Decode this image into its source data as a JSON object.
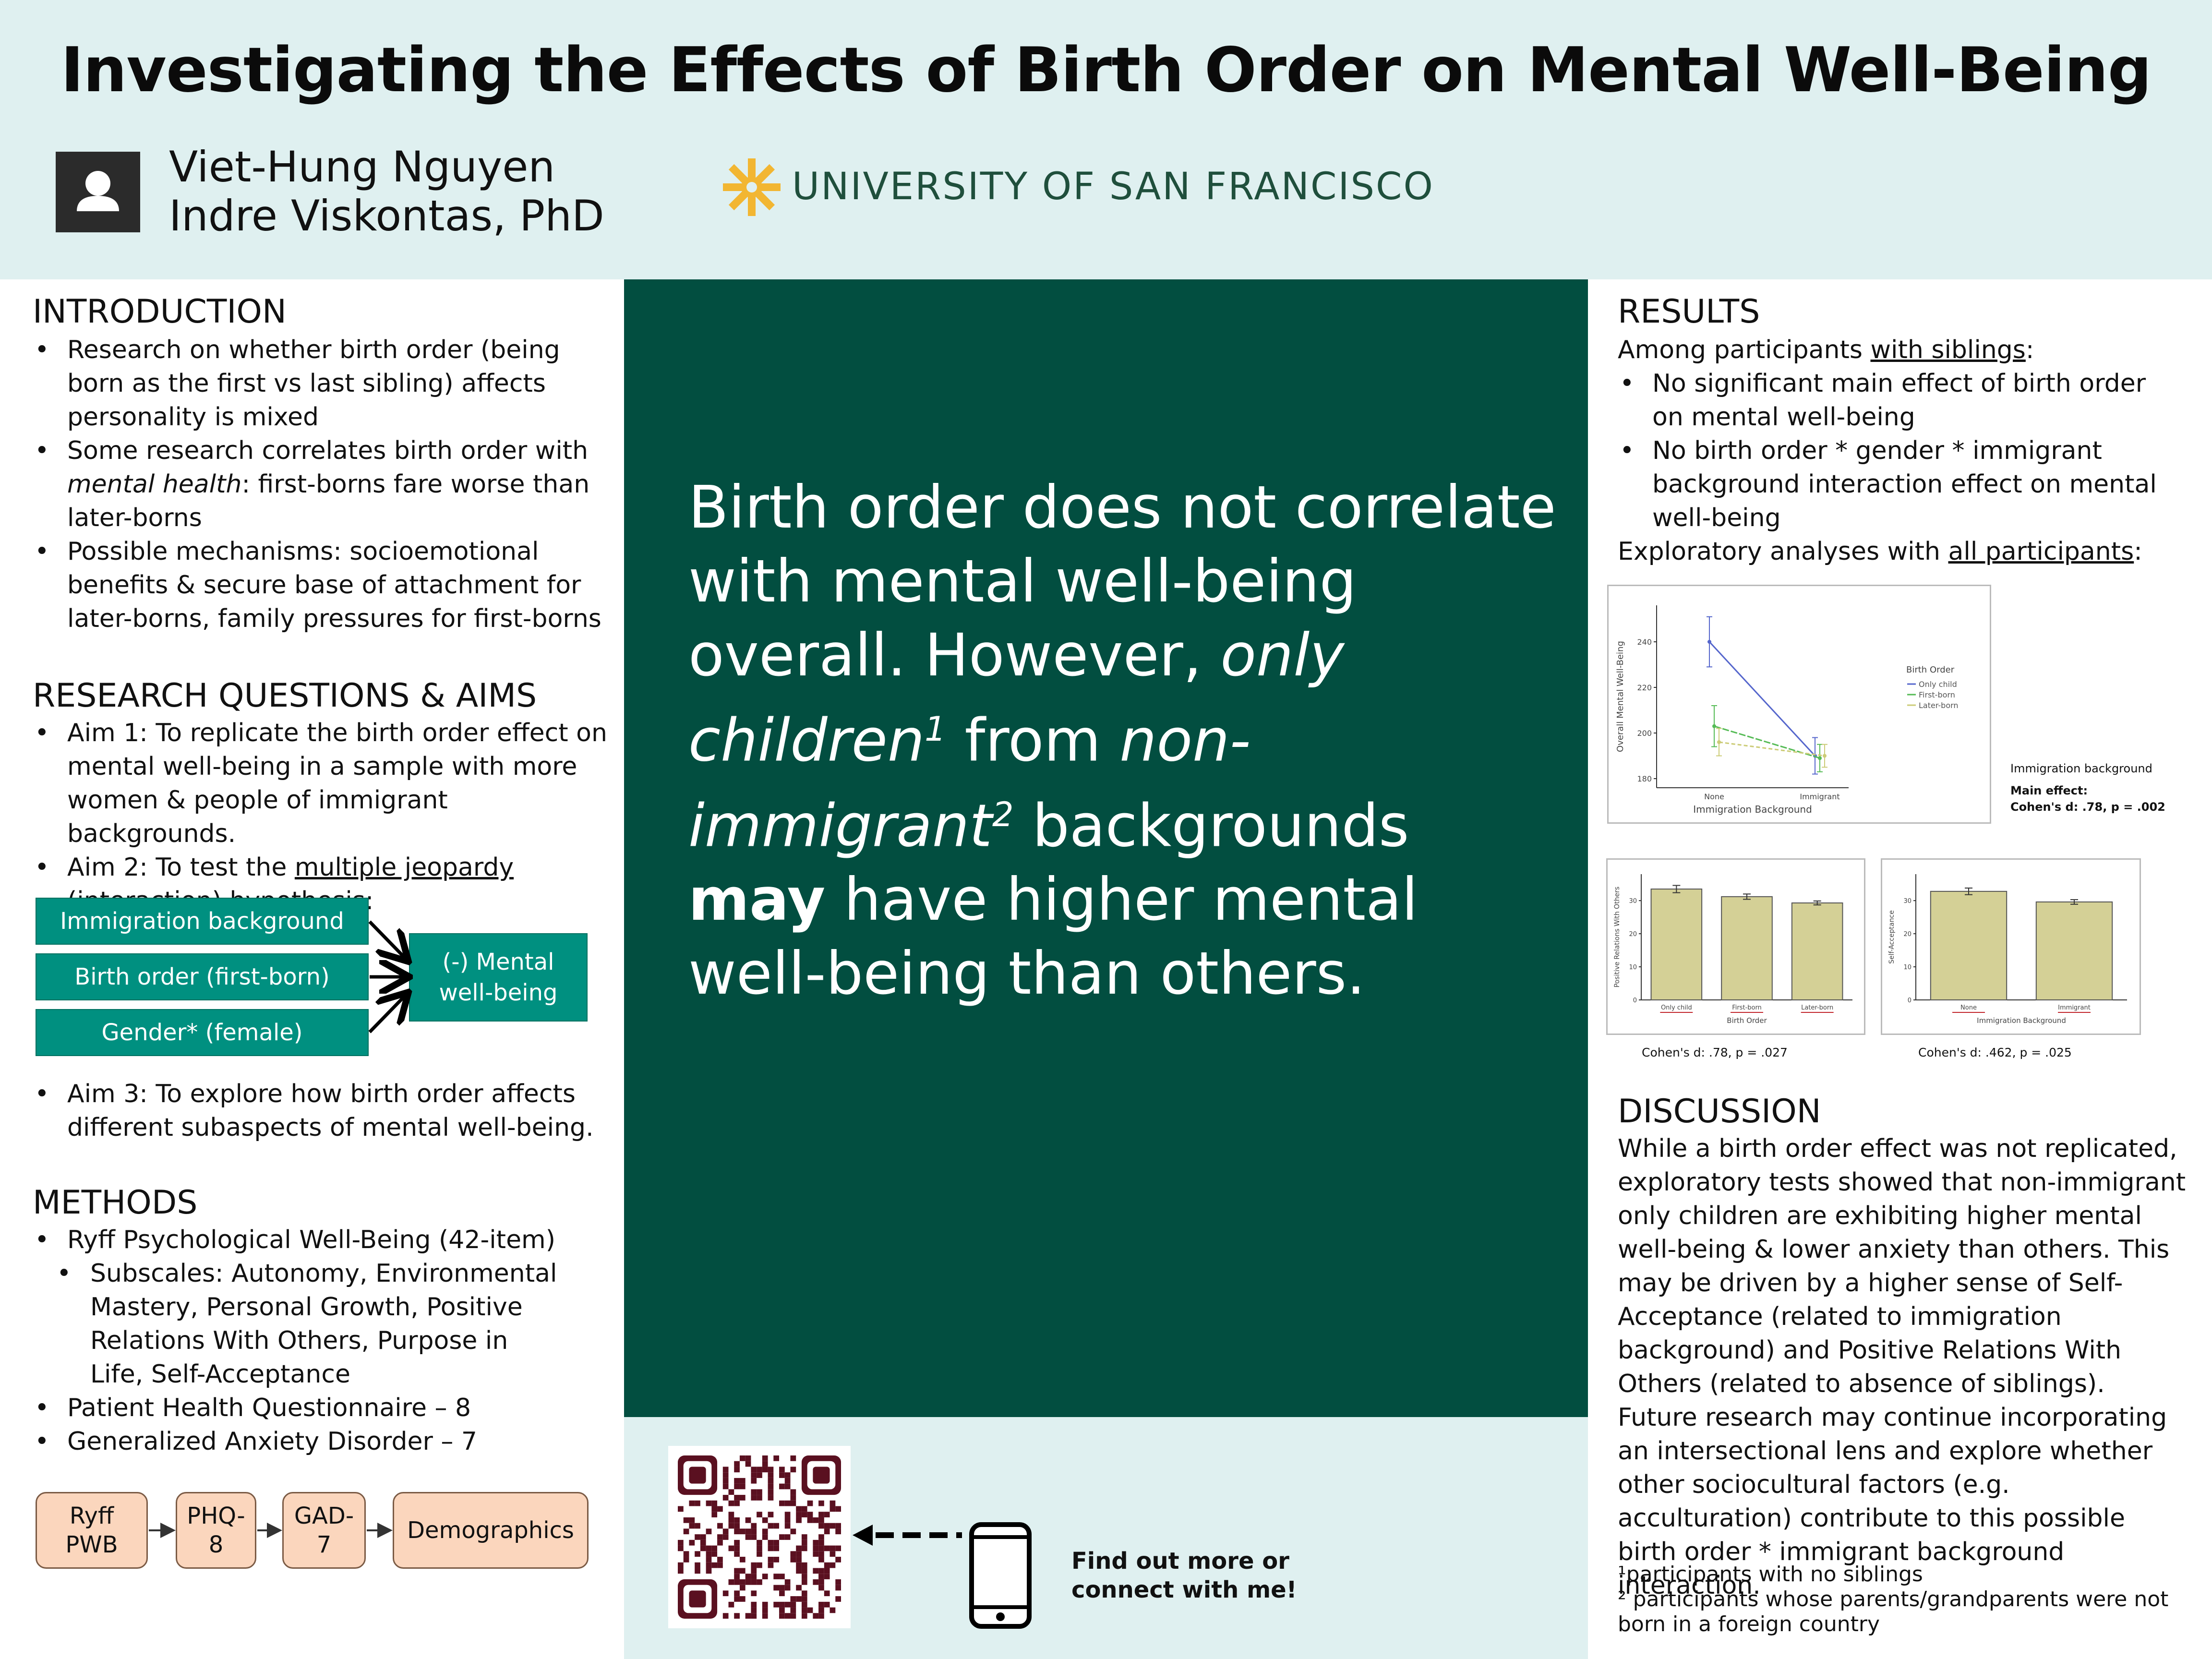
{
  "header": {
    "title": "Investigating the Effects of Birth Order on Mental Well-Being",
    "authors": [
      "Viet-Hung Nguyen",
      "Indre Viskontas, PhD"
    ],
    "avatar_icon": "user-icon",
    "logo_text": "UNIVERSITY OF SAN FRANCISCO",
    "colors": {
      "header_bg": "#dff0f0",
      "center_panel": "#024e40",
      "teal_box": "#009080",
      "peach_box": "#fbd6bd",
      "logo_gold": "#f2b632",
      "logo_green": "#1f4f3c"
    }
  },
  "introduction": {
    "title": "INTRODUCTION",
    "bullets": [
      "Research on whether birth order (being born as the first vs last sibling) affects personality is mixed",
      "Some research correlates birth order with mental health: first-borns fare worse than later-borns",
      "Possible mechanisms: socioemotional benefits & secure base of attachment for later-borns, family pressures for first-borns"
    ],
    "b2_pre": "Some research correlates birth order with ",
    "b2_em": "mental health",
    "b2_post": ": first-borns fare worse than later-borns"
  },
  "research": {
    "title": "RESEARCH QUESTIONS & AIMS",
    "aim1": "Aim 1: To replicate the birth order effect on mental well-being in a sample with more women & people of immigrant backgrounds.",
    "aim2_pre": "Aim 2: To test the ",
    "aim2_link": "multiple jeopardy (interaction) hypothesis",
    "aim2_post": ":",
    "diagram": {
      "inputs": [
        "Immigration background",
        "Birth order (first-born)",
        "Gender* (female)"
      ],
      "output": "(-) Mental well-being"
    },
    "aim3": "Aim 3: To explore how birth order affects different subaspects of mental well-being."
  },
  "methods": {
    "title": "METHODS",
    "b1": "Ryff Psychological Well-Being (42-item)",
    "sub": "Subscales: Autonomy, Environmental Mastery, Personal Growth, Positive Relations With Others, Purpose in Life, Self-Acceptance",
    "b2": "Patient Health Questionnaire – 8",
    "b3": "Generalized Anxiety Disorder – 7",
    "flow": [
      "Ryff PWB",
      "PHQ-8",
      "GAD-7",
      "Demographics"
    ]
  },
  "center": {
    "line1": "Birth order does not correlate with mental well-being overall.",
    "line2_pre": "However, ",
    "only_children": "only children",
    "sup1": "1",
    "from": " from ",
    "non_immigrant": "non-immigrant",
    "sup2": "2",
    "backgrounds": " backgrounds ",
    "may": "may",
    "rest": " have higher mental well-being than others.",
    "find_more": [
      "Find out more or",
      "connect with me!"
    ]
  },
  "results": {
    "title": "RESULTS",
    "among_pre": "Among participants ",
    "among_link": "with siblings",
    "among_post": ":",
    "bullets": [
      "No significant main effect of birth order on mental well-being",
      "No birth order * gender * immigrant background interaction effect on mental well-being"
    ],
    "expl_pre": "Exploratory analyses with ",
    "expl_link": "all participants",
    "expl_post": ":",
    "line_note_title": "Immigration background",
    "line_note_main": "Main effect:",
    "line_note_stat": "Cohen's d: .78, p = .002",
    "bar1_caption": "Cohen's d: .78, p = .027",
    "bar2_caption": "Cohen's d: .462, p = .025"
  },
  "chart_data": [
    {
      "type": "line",
      "xlabel": "Immigration Background",
      "ylabel": "Overall Mental Well-Being",
      "categories": [
        "None",
        "Immigrant"
      ],
      "yticks": [
        180,
        200,
        220,
        240
      ],
      "ylim": [
        176,
        256
      ],
      "legend_title": "Birth Order",
      "legend_position": "right",
      "series": [
        {
          "name": "Only child",
          "values": [
            240,
            190
          ],
          "err": [
            11,
            8
          ],
          "color": "#5566cc"
        },
        {
          "name": "First-born",
          "values": [
            203,
            189
          ],
          "err": [
            9,
            6
          ],
          "color": "#55bb55"
        },
        {
          "name": "Later-born",
          "values": [
            196,
            190
          ],
          "err": [
            6,
            5
          ],
          "color": "#cccc77"
        }
      ]
    },
    {
      "type": "bar",
      "xlabel": "Birth Order",
      "ylabel": "Positive Relations With Others",
      "categories": [
        "Only child",
        "First-born",
        "Later-born"
      ],
      "values": [
        33.5,
        31.2,
        29.3
      ],
      "err": [
        1.1,
        0.8,
        0.6
      ],
      "yticks": [
        0,
        10,
        20,
        30
      ],
      "ylim": [
        0,
        38
      ],
      "color": "#d4d096"
    },
    {
      "type": "bar",
      "xlabel": "Immigration Background",
      "ylabel": "Self-Acceptance",
      "categories": [
        "None",
        "Immigrant"
      ],
      "values": [
        32.8,
        29.6
      ],
      "err": [
        1.0,
        0.7
      ],
      "yticks": [
        0,
        10,
        20,
        30
      ],
      "ylim": [
        0,
        38
      ],
      "color": "#d4d096"
    }
  ],
  "discussion": {
    "title": "DISCUSSION",
    "text": "While a birth order effect was not replicated, exploratory tests showed that non-immigrant only children are exhibiting higher mental well-being & lower anxiety than others. This may be driven by a higher sense of Self-Acceptance (related to immigration background) and Positive Relations With Others (related to absence of siblings). Future research may continue incorporating an intersectional lens and explore whether other sociocultural factors (e.g. acculturation) contribute to this possible birth order * immigrant background interaction.",
    "fn1": "¹participants with no siblings",
    "fn2": "² participants whose parents/grandparents were not born in a foreign country"
  }
}
